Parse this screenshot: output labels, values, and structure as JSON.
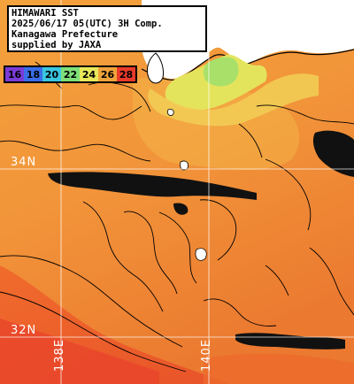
{
  "header": {
    "line1": "HIMAWARI SST",
    "line2": "2025/06/17 05(UTC) 3H Comp.",
    "line3": "Kanagawa Prefecture",
    "line4": "supplied by JAXA"
  },
  "scale": {
    "labels": [
      "16",
      "18",
      "20",
      "22",
      "24",
      "26",
      "28"
    ],
    "colors": [
      "#7a3bd6",
      "#3a6ee8",
      "#39c6e0",
      "#7fe07a",
      "#e8e85a",
      "#f0a23a",
      "#e83a2a"
    ]
  },
  "axes": {
    "lat_34": "34N",
    "lat_32": "32N",
    "lon_138": "138E",
    "lon_140": "140E"
  },
  "colors": {
    "land": "#ffffff",
    "cloud": "#111111",
    "sst_warm": "#e8632a",
    "sst_mid": "#f2953a",
    "sst_cool": "#f6b84a",
    "sst_cold": "#e6e45c",
    "grid": "#ffffff"
  }
}
